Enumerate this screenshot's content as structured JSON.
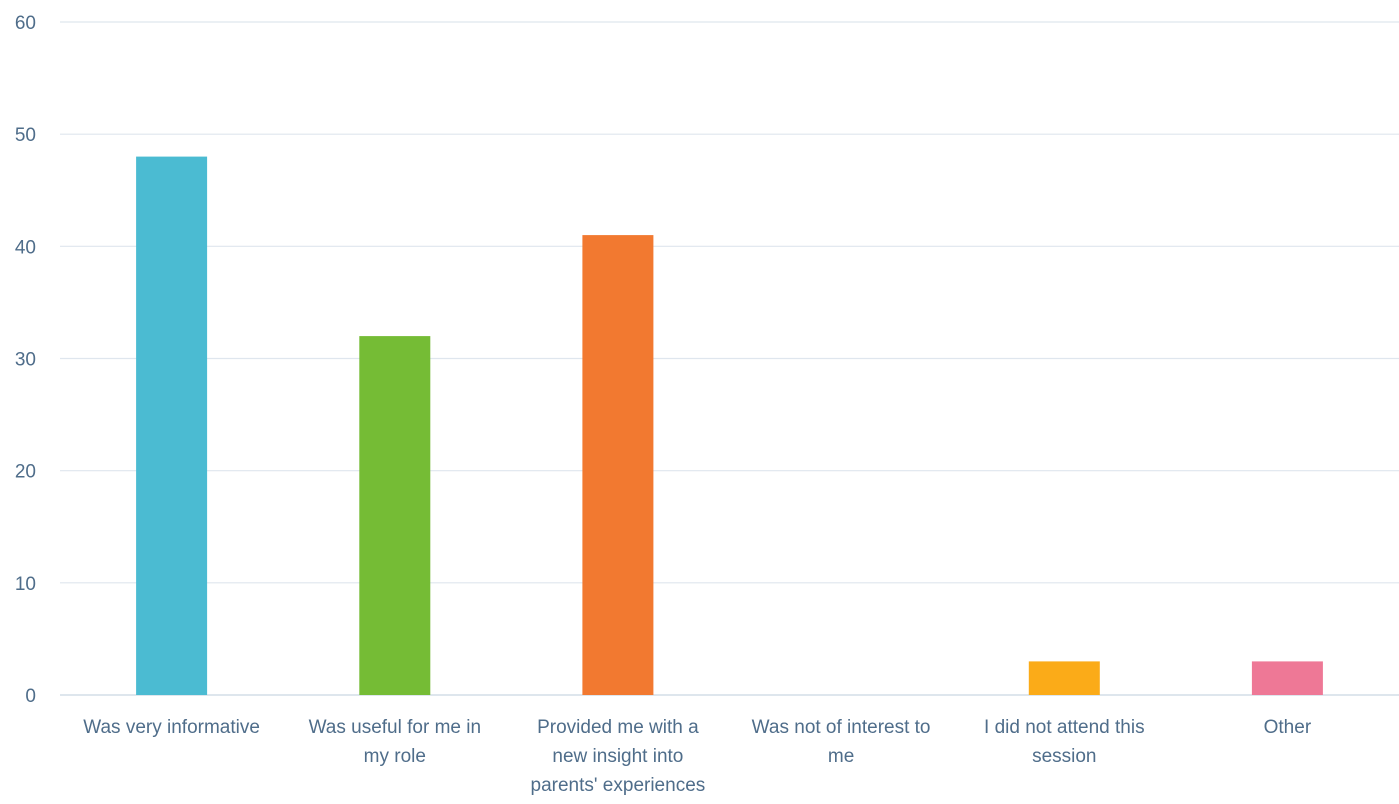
{
  "chart_data": {
    "type": "bar",
    "categories": [
      [
        "Was very informative"
      ],
      [
        "Was useful for me in",
        "my role"
      ],
      [
        "Provided me with a",
        "new insight into",
        "parents' experiences"
      ],
      [
        "Was not of interest to",
        "me"
      ],
      [
        "I did not attend this",
        "session"
      ],
      [
        "Other"
      ]
    ],
    "values": [
      48,
      32,
      41,
      0,
      3,
      3
    ],
    "colors": [
      "#4bbbd2",
      "#75bc35",
      "#f27930",
      "#8e6bbf",
      "#fbab18",
      "#ee7896"
    ],
    "ylim": [
      0,
      60
    ],
    "yticks": [
      0,
      10,
      20,
      30,
      40,
      50,
      60
    ],
    "grid": true,
    "title": "",
    "xlabel": "",
    "ylabel": ""
  }
}
